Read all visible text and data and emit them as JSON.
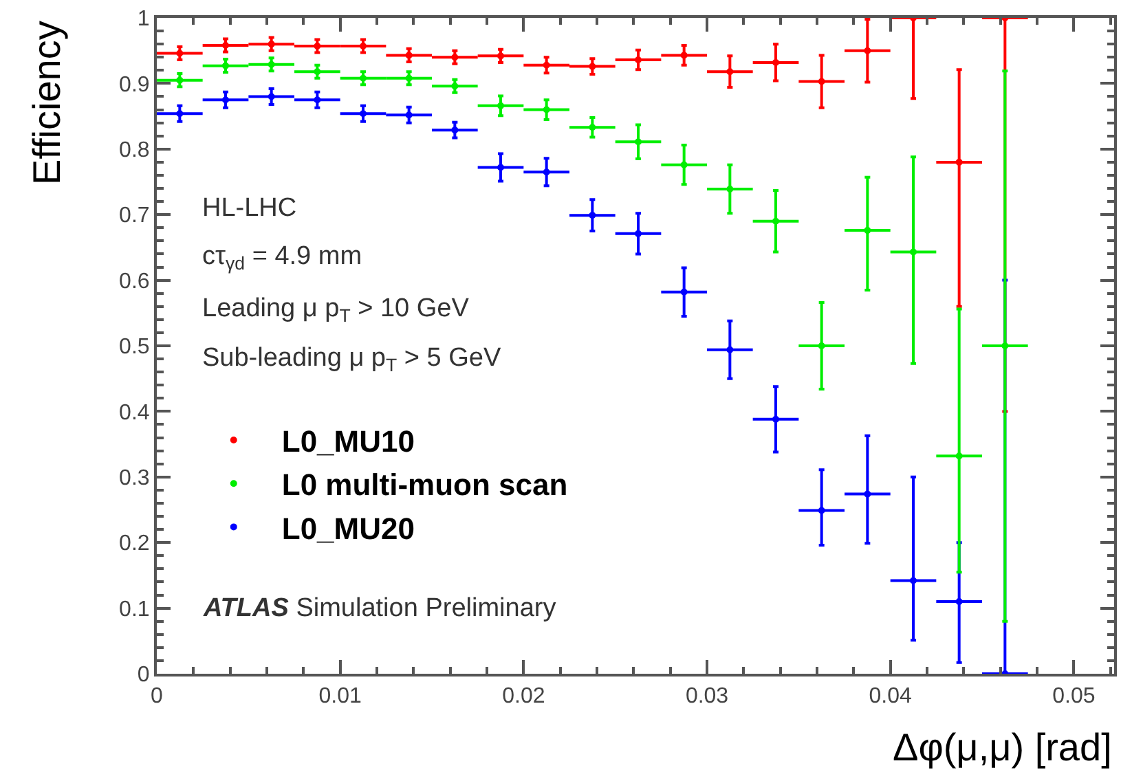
{
  "chart_data": {
    "type": "scatter",
    "xlabel": "Δφ(μ,μ) [rad]",
    "ylabel": "Efficiency",
    "x": [
      0.00125,
      0.00375,
      0.00625,
      0.00875,
      0.01125,
      0.01375,
      0.01625,
      0.01875,
      0.02125,
      0.02375,
      0.02625,
      0.02875,
      0.03125,
      0.03375,
      0.03625,
      0.03875,
      0.04125,
      0.04375,
      0.04625
    ],
    "series": [
      {
        "name": "L0_MU10",
        "color": "#ff0000",
        "values": [
          0.946,
          0.958,
          0.96,
          0.957,
          0.957,
          0.943,
          0.94,
          0.942,
          0.928,
          0.926,
          0.936,
          0.943,
          0.918,
          0.932,
          0.903,
          0.95,
          1.0,
          0.78,
          1.0
        ],
        "errors": [
          0.01,
          0.01,
          0.01,
          0.01,
          0.01,
          0.01,
          0.01,
          0.01,
          0.012,
          0.012,
          0.015,
          0.015,
          0.024,
          0.028,
          0.04,
          0.048,
          [
            0.877,
            1.0
          ],
          [
            0.56,
            0.921
          ],
          [
            0.4,
            1.0
          ]
        ],
        "xerrors": [
          0.00125,
          0.00125,
          0.00125,
          0.00125,
          0.00125,
          0.00125,
          0.00125,
          0.00125,
          0.00125,
          0.00125,
          0.00125,
          0.00125,
          0.00125,
          0.00125,
          0.00125,
          0.00125,
          0.00125,
          0.00125,
          0.00125
        ]
      },
      {
        "name": "L0_MU20",
        "color": "#0000ff",
        "values": [
          0.854,
          0.875,
          0.88,
          0.875,
          0.854,
          0.852,
          0.829,
          0.772,
          0.765,
          0.699,
          0.671,
          0.582,
          0.494,
          0.388,
          0.249,
          0.274,
          0.142,
          0.11,
          0.0
        ],
        "errors": [
          0.012,
          0.012,
          0.012,
          0.012,
          0.012,
          0.012,
          0.012,
          0.021,
          0.021,
          0.024,
          0.031,
          0.037,
          0.044,
          0.05,
          [
            0.196,
            0.311
          ],
          [
            0.199,
            0.363
          ],
          [
            0.051,
            0.3
          ],
          [
            0.017,
            0.2
          ],
          [
            0.0,
            0.6
          ]
        ],
        "xerrors": [
          0.00125,
          0.00125,
          0.00125,
          0.00125,
          0.00125,
          0.00125,
          0.00125,
          0.00125,
          0.00125,
          0.00125,
          0.00125,
          0.00125,
          0.00125,
          0.00125,
          0.00125,
          0.00125,
          0.00125,
          0.00125,
          0.00125
        ]
      },
      {
        "name": "L0 multi-muon scan",
        "color": "#00ee00",
        "values": [
          0.905,
          0.927,
          0.929,
          0.918,
          0.908,
          0.908,
          0.896,
          0.866,
          0.86,
          0.833,
          0.811,
          0.776,
          0.739,
          0.69,
          0.5,
          0.676,
          0.643,
          0.332,
          0.5
        ],
        "errors": [
          0.01,
          0.01,
          0.01,
          0.01,
          0.01,
          0.01,
          0.01,
          0.015,
          0.015,
          0.015,
          0.026,
          0.03,
          0.037,
          0.047,
          [
            0.434,
            0.566
          ],
          [
            0.585,
            0.757
          ],
          [
            0.473,
            0.788
          ],
          [
            0.155,
            0.556
          ],
          [
            0.08,
            0.919
          ]
        ],
        "xerrors": [
          0.00125,
          0.00125,
          0.00125,
          0.00125,
          0.00125,
          0.00125,
          0.00125,
          0.00125,
          0.00125,
          0.00125,
          0.00125,
          0.00125,
          0.00125,
          0.00125,
          0.00125,
          0.00125,
          0.00125,
          0.00125,
          0.00125
        ]
      }
    ],
    "xlim": [
      0,
      0.0522
    ],
    "ylim": [
      0,
      1
    ],
    "xticks": [
      0,
      0.01,
      0.02,
      0.03,
      0.04,
      0.05
    ],
    "yticks": [
      0,
      0.1,
      0.2,
      0.3,
      0.4,
      0.5,
      0.6,
      0.7,
      0.8,
      0.9,
      1
    ],
    "legend": "bottom left",
    "marker": "circle",
    "annotations": [
      "HL-LHC",
      "cτ$_{γd}$ = 4.9 mm",
      "Leading μ p$_{T}$ > 10 GeV",
      "Sub-leading μ p$_{T}$ > 5 GeV",
      "ATLAS Simulation Preliminary"
    ]
  }
}
